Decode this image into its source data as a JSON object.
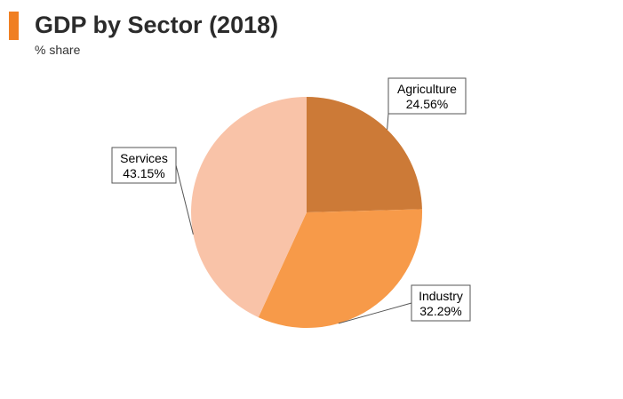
{
  "header": {
    "title": "GDP by Sector (2018)",
    "subtitle": "% share",
    "accent_color": "#f07f22"
  },
  "chart_data": {
    "type": "pie",
    "title": "GDP by Sector (2018)",
    "subtitle": "% share",
    "start_angle_deg": 0,
    "direction": "clockwise",
    "slices": [
      {
        "label": "Agriculture",
        "value": 24.56,
        "display": "24.56%",
        "color": "#cc7a37"
      },
      {
        "label": "Industry",
        "value": 32.29,
        "display": "32.29%",
        "color": "#f79a49"
      },
      {
        "label": "Services",
        "value": 43.15,
        "display": "43.15%",
        "color": "#f9c3a8"
      }
    ]
  }
}
